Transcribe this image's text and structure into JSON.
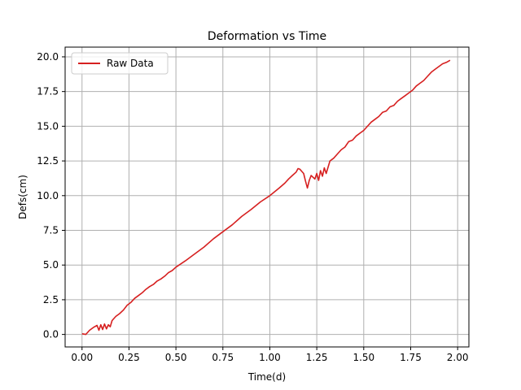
{
  "chart_data": {
    "type": "line",
    "title": "Deformation vs Time",
    "xlabel": "Time(d)",
    "ylabel": "Defs(cm)",
    "xlim": [
      -0.09,
      2.06
    ],
    "ylim": [
      -0.9,
      20.7
    ],
    "xticks": [
      "0.00",
      "0.25",
      "0.50",
      "0.75",
      "1.00",
      "1.25",
      "1.50",
      "1.75",
      "2.00"
    ],
    "yticks": [
      "0.0",
      "2.5",
      "5.0",
      "7.5",
      "10.0",
      "12.5",
      "15.0",
      "17.5",
      "20.0"
    ],
    "grid": true,
    "legend_position": "top-left",
    "series": [
      {
        "name": "Raw Data",
        "color": "#d62020",
        "x": [
          0.0,
          0.02,
          0.04,
          0.06,
          0.08,
          0.09,
          0.1,
          0.11,
          0.12,
          0.13,
          0.14,
          0.15,
          0.16,
          0.18,
          0.2,
          0.22,
          0.24,
          0.26,
          0.28,
          0.3,
          0.32,
          0.34,
          0.36,
          0.38,
          0.4,
          0.42,
          0.44,
          0.46,
          0.48,
          0.5,
          0.55,
          0.6,
          0.65,
          0.7,
          0.75,
          0.8,
          0.85,
          0.9,
          0.95,
          1.0,
          1.05,
          1.08,
          1.1,
          1.12,
          1.14,
          1.15,
          1.16,
          1.18,
          1.19,
          1.2,
          1.21,
          1.22,
          1.24,
          1.25,
          1.26,
          1.27,
          1.28,
          1.29,
          1.3,
          1.32,
          1.34,
          1.36,
          1.38,
          1.4,
          1.42,
          1.44,
          1.46,
          1.48,
          1.5,
          1.52,
          1.54,
          1.56,
          1.58,
          1.6,
          1.62,
          1.64,
          1.66,
          1.68,
          1.7,
          1.72,
          1.74,
          1.76,
          1.78,
          1.8,
          1.82,
          1.84,
          1.86,
          1.88,
          1.9,
          1.92,
          1.94,
          1.96
        ],
        "y": [
          0.05,
          0.0,
          0.3,
          0.5,
          0.65,
          0.3,
          0.7,
          0.35,
          0.75,
          0.4,
          0.7,
          0.55,
          1.0,
          1.3,
          1.5,
          1.75,
          2.1,
          2.3,
          2.6,
          2.8,
          3.0,
          3.25,
          3.45,
          3.6,
          3.85,
          4.0,
          4.2,
          4.45,
          4.6,
          4.85,
          5.3,
          5.8,
          6.3,
          6.9,
          7.4,
          7.9,
          8.5,
          9.0,
          9.55,
          10.0,
          10.55,
          10.9,
          11.2,
          11.45,
          11.7,
          11.95,
          11.9,
          11.6,
          11.05,
          10.55,
          11.1,
          11.45,
          11.2,
          11.6,
          11.1,
          11.8,
          11.4,
          12.0,
          11.6,
          12.5,
          12.7,
          13.0,
          13.3,
          13.5,
          13.9,
          14.0,
          14.3,
          14.5,
          14.7,
          15.0,
          15.3,
          15.5,
          15.7,
          16.0,
          16.1,
          16.4,
          16.5,
          16.8,
          17.0,
          17.2,
          17.4,
          17.6,
          17.9,
          18.1,
          18.3,
          18.6,
          18.9,
          19.1,
          19.3,
          19.5,
          19.6,
          19.75
        ]
      }
    ]
  }
}
